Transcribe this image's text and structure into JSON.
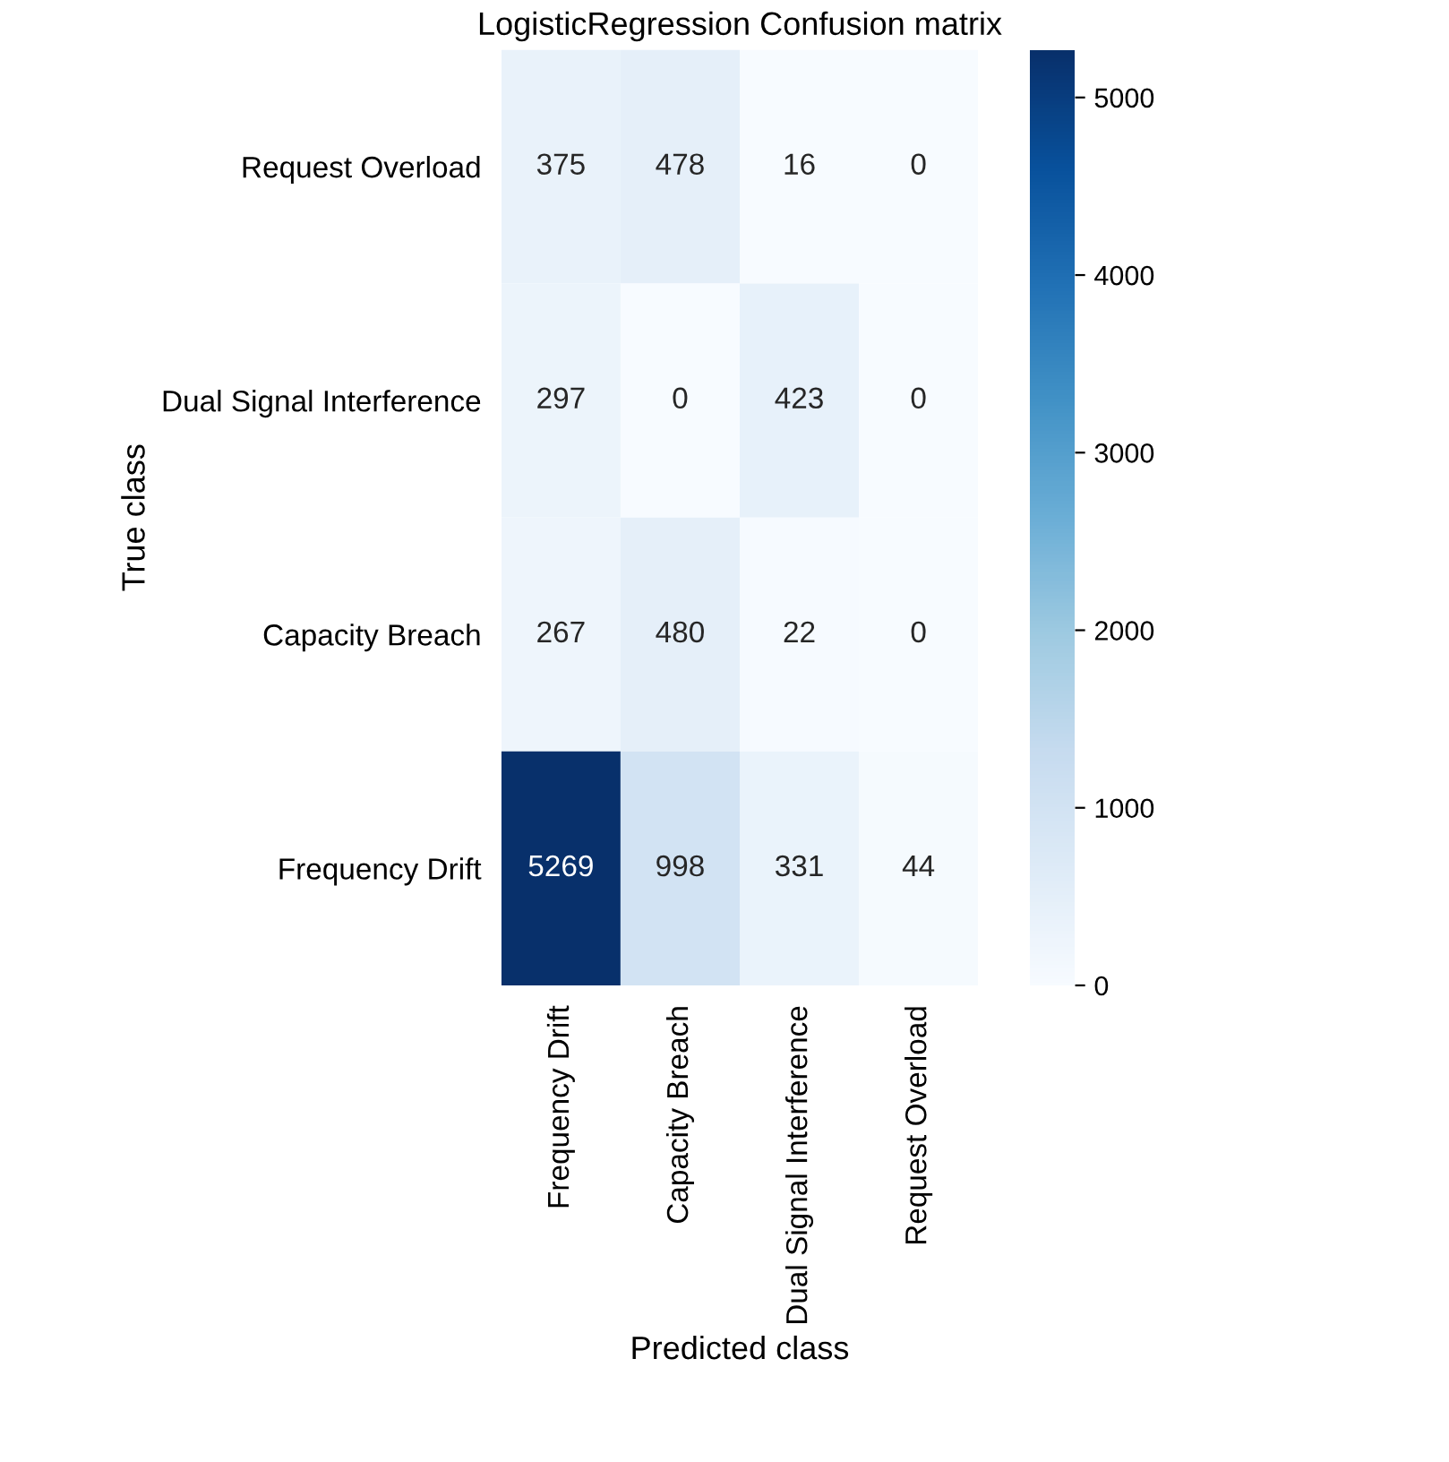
{
  "chart_data": {
    "type": "heatmap",
    "title": "LogisticRegression Confusion matrix",
    "xlabel": "Predicted class",
    "ylabel": "True class",
    "categories": [
      "Frequency Drift",
      "Capacity Breach",
      "Dual Signal Interference",
      "Request Overload"
    ],
    "y_categories": [
      "Request Overload",
      "Dual Signal Interference",
      "Capacity Breach",
      "Frequency Drift"
    ],
    "cells": [
      [
        375,
        478,
        16,
        0
      ],
      [
        297,
        0,
        423,
        0
      ],
      [
        267,
        480,
        22,
        0
      ],
      [
        5269,
        998,
        331,
        44
      ]
    ],
    "clim": [
      0,
      5269
    ],
    "cticks": [
      0,
      1000,
      2000,
      3000,
      4000,
      5000
    ],
    "data_labels": true
  }
}
